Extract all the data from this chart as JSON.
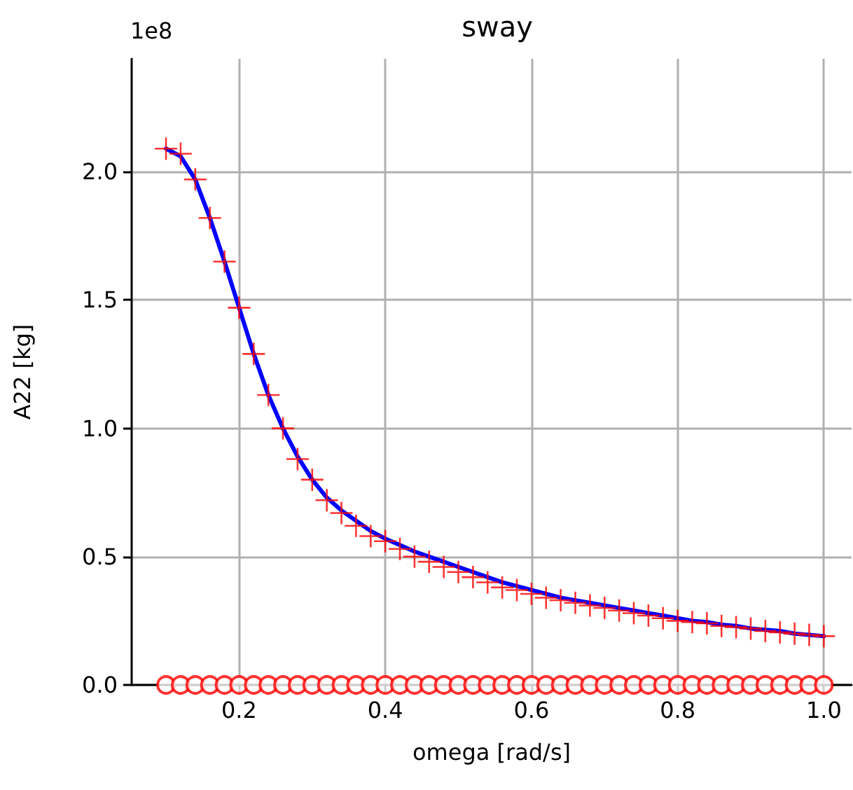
{
  "chart_data": {
    "type": "line",
    "title": "sway",
    "xlabel": "omega [rad/s]",
    "ylabel": "A22 [kg]",
    "annotations": [
      "1e8"
    ],
    "x": [
      0.1,
      0.12,
      0.14,
      0.16,
      0.18,
      0.2,
      0.22,
      0.24,
      0.26,
      0.28,
      0.3,
      0.32,
      0.34,
      0.36,
      0.38,
      0.4,
      0.42,
      0.44,
      0.46,
      0.48,
      0.5,
      0.52,
      0.54,
      0.56,
      0.58,
      0.6,
      0.62,
      0.64,
      0.66,
      0.68,
      0.7,
      0.72,
      0.74,
      0.76,
      0.78,
      0.8,
      0.82,
      0.84,
      0.86,
      0.88,
      0.9,
      0.92,
      0.94,
      0.96,
      0.98,
      1.0
    ],
    "series": [
      {
        "color": "#0000ff",
        "marker": "none",
        "line_style": "solid",
        "values": [
          2.09,
          2.06,
          1.97,
          1.82,
          1.65,
          1.47,
          1.29,
          1.13,
          1.0,
          0.89,
          0.8,
          0.73,
          0.68,
          0.64,
          0.6,
          0.57,
          0.545,
          0.52,
          0.5,
          0.48,
          0.46,
          0.44,
          0.42,
          0.4,
          0.385,
          0.37,
          0.355,
          0.34,
          0.33,
          0.32,
          0.31,
          0.3,
          0.29,
          0.28,
          0.27,
          0.26,
          0.25,
          0.245,
          0.235,
          0.23,
          0.22,
          0.215,
          0.21,
          0.2,
          0.195,
          0.19
        ]
      },
      {
        "type": "scatter",
        "color": "#ff0000",
        "marker": "cross",
        "values": [
          2.09,
          2.07,
          1.97,
          1.82,
          1.65,
          1.47,
          1.29,
          1.13,
          1.0,
          0.88,
          0.8,
          0.72,
          0.67,
          0.62,
          0.58,
          0.56,
          0.53,
          0.5,
          0.48,
          0.46,
          0.44,
          0.42,
          0.4,
          0.38,
          0.37,
          0.355,
          0.34,
          0.33,
          0.32,
          0.31,
          0.3,
          0.29,
          0.28,
          0.27,
          0.26,
          0.25,
          0.245,
          0.24,
          0.23,
          0.225,
          0.22,
          0.21,
          0.205,
          0.2,
          0.195,
          0.19
        ]
      },
      {
        "type": "scatter",
        "color": "#ff0000",
        "marker": "circle",
        "values": [
          0,
          0,
          0,
          0,
          0,
          0,
          0,
          0,
          0,
          0,
          0,
          0,
          0,
          0,
          0,
          0,
          0,
          0,
          0,
          0,
          0,
          0,
          0,
          0,
          0,
          0,
          0,
          0,
          0,
          0,
          0,
          0,
          0,
          0,
          0,
          0,
          0,
          0,
          0,
          0,
          0,
          0,
          0,
          0,
          0,
          0
        ]
      }
    ],
    "xlim": [
      0.053,
      1.038
    ],
    "xticks": [
      0.2,
      0.4,
      0.6,
      0.8,
      {
        "value": 1,
        "label": "1.0"
      }
    ],
    "ylim": [
      0,
      2.44
    ],
    "yticks": [
      {
        "value": 0,
        "label": "0.0"
      },
      0.5,
      {
        "value": 1,
        "label": "1.0"
      },
      1.5,
      {
        "value": 2,
        "label": "2.0"
      }
    ],
    "grid": true
  }
}
